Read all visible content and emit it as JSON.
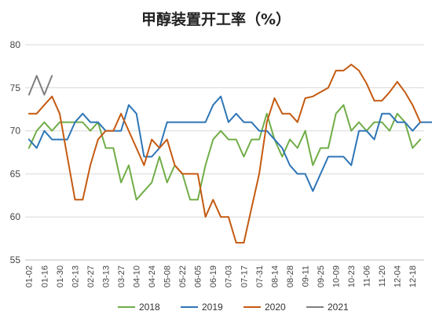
{
  "chart_data": {
    "type": "line",
    "title": "甲醇装置开工率（%）",
    "xlabel": "",
    "ylabel": "",
    "ylim": [
      55,
      80
    ],
    "yticks": [
      55,
      60,
      65,
      70,
      75,
      80
    ],
    "grid": true,
    "legend_position": "bottom",
    "xtick_labels": [
      "01-02",
      "01-16",
      "01-30",
      "02-13",
      "02-27",
      "03-13",
      "03-27",
      "04-10",
      "04-24",
      "05-08",
      "05-22",
      "06-05",
      "06-19",
      "07-03",
      "07-17",
      "07-31",
      "08-14",
      "08-28",
      "09-11",
      "09-25",
      "10-09",
      "10-23",
      "11-06",
      "11-20",
      "12-04",
      "12-18"
    ],
    "series": [
      {
        "name": "2018",
        "color": "#70ad47",
        "values": [
          68,
          70,
          71,
          70,
          71,
          71,
          71,
          71,
          70,
          71,
          68,
          68,
          64,
          66,
          62,
          63,
          64,
          67,
          64,
          66,
          65,
          62,
          62,
          66,
          69,
          70,
          69,
          69,
          67,
          69,
          69,
          72,
          69,
          67,
          69,
          68,
          70,
          66,
          68,
          68,
          72,
          73,
          70,
          71,
          70,
          71,
          71,
          70,
          72,
          71,
          68,
          69
        ]
      },
      {
        "name": "2019",
        "color": "#2e75b6",
        "values": [
          69,
          68,
          70,
          69,
          69,
          69,
          71,
          72,
          71,
          71,
          70,
          70,
          70,
          73,
          72,
          67,
          67,
          68,
          71,
          71,
          71,
          71,
          71,
          71,
          73,
          74,
          71,
          72,
          71,
          71,
          70,
          70,
          69,
          68,
          66,
          65,
          65,
          63,
          65,
          67,
          67,
          67,
          66,
          70,
          70,
          69,
          72,
          72,
          71,
          71,
          70,
          71,
          71,
          71
        ]
      },
      {
        "name": "2020",
        "color": "#c55a11",
        "values": [
          72,
          72,
          73,
          74,
          72,
          67,
          62,
          62,
          66,
          69,
          70,
          70,
          72,
          70,
          68,
          66,
          69,
          68,
          69,
          66,
          65,
          65,
          65,
          60,
          62,
          60,
          60,
          57,
          57,
          61,
          65,
          71,
          73.8,
          72,
          72,
          71,
          73.8,
          74,
          74.5,
          75,
          77,
          77,
          77.7,
          77,
          75.5,
          73.5,
          73.5,
          74.5,
          75.7,
          74.5,
          73,
          71
        ]
      },
      {
        "name": "2021",
        "color": "#7f7f7f",
        "values": [
          74.2,
          76.4,
          74.2,
          76.4
        ]
      }
    ]
  }
}
